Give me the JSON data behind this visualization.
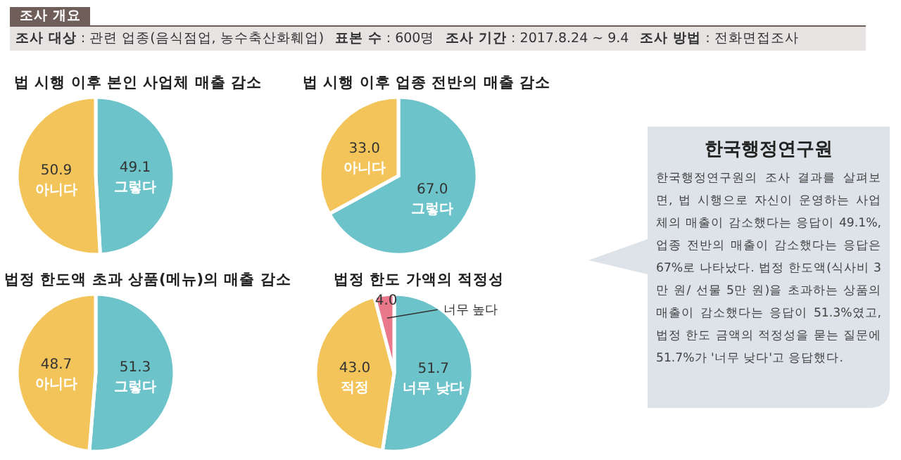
{
  "chart_data": [
    {
      "type": "other",
      "title": "조사 개요",
      "annotations": [
        "**조사 대상** : 관련 업종(음식점업, 농수축산화훼업)",
        "**표본 수** : 600명",
        "**조사 기간** : 2017.8.24 ~ 9.4",
        "**조사 방법** : 전화면접조사"
      ]
    },
    {
      "type": "pie",
      "title": "법 시행 이후 본인 사업체 매출 감소",
      "categories": [
        "그렇다",
        "아니다"
      ],
      "values": [
        49.1,
        50.9
      ],
      "colors": [
        "#6cc3c9",
        "#f2c45a"
      ],
      "data_labels": true
    },
    {
      "type": "pie",
      "title": "법 시행 이후 업종 전반의 매출 감소",
      "categories": [
        "그렇다",
        "아니다"
      ],
      "values": [
        67.0,
        33.0
      ],
      "value_labels": [
        "67.0",
        "33.0"
      ],
      "colors": [
        "#6cc3c9",
        "#f2c45a"
      ]
    },
    {
      "type": "pie",
      "title": "법정 한도액 초과 상품(메뉴)의 매출 감소",
      "categories": [
        "그렇다",
        "아니다"
      ],
      "values": [
        51.3,
        48.7
      ],
      "colors": [
        "#6cc3c9",
        "#f2c45a"
      ],
      "data_labels": true
    },
    {
      "type": "pie",
      "title": "법정 한도 가액의 적정성",
      "categories": [
        "너무 낮다",
        "적정",
        "너무 높다"
      ],
      "values": [
        51.7,
        43.0,
        4.0
      ],
      "value_labels": [
        "51.7",
        "43.0",
        "4.0"
      ],
      "colors": [
        "#6cc3c9",
        "#f2c45a",
        "#e8788a"
      ]
    },
    {
      "type": "other",
      "title": "한국행정연구원",
      "annotations": [
        "한국행정연구원의 조사 결과를 살펴보면, 법 시행으로 자신이 운영하는 사업체의 매출이 감소했다는 응답이 49.1%, 업종 전반의 매출이 감소했다는 응답은 67%로 나타났다. 법정 한도액(식사비 3만 원/ 선물 5만 원)을 초과하는 상품의 매출이 감소했다는 응답이 51.3%였고, 법정 한도 금액의 적정성을 묻는 질문에 51.7%가 '너무 낮다'고 응답했다."
      ]
    }
  ]
}
